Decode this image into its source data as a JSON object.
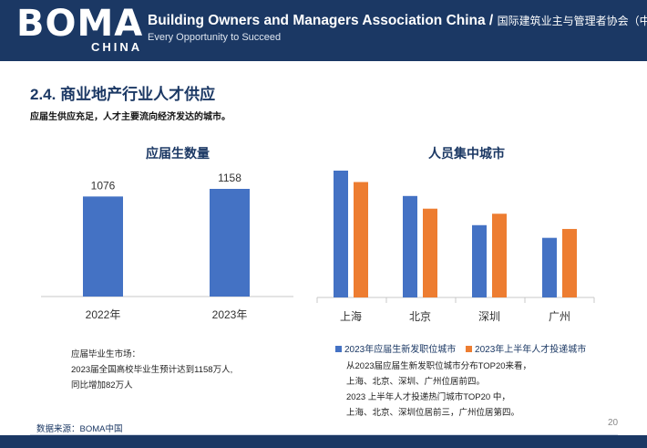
{
  "header": {
    "logo": "BOMA",
    "logo_sub": "CHINA",
    "title_en": "Building Owners and Managers Association China /",
    "title_cn": "国际建筑业主与管理者协会（中国）",
    "tagline": "Every Opportunity to Succeed"
  },
  "section": {
    "title": "2.4. 商业地产行业人才供应",
    "subtitle": "应届生供应充足，人才主要流向经济发达的城市。"
  },
  "chart_data": [
    {
      "type": "bar",
      "title": "应届生数量",
      "categories": [
        "2022年",
        "2023年"
      ],
      "values": [
        1076,
        1158
      ],
      "data_labels": [
        "1076",
        "1158"
      ],
      "colors": {
        "bar": "#4472c4"
      },
      "grid": false
    },
    {
      "type": "bar",
      "title": "人员集中城市",
      "categories": [
        "上海",
        "北京",
        "深圳",
        "广州"
      ],
      "series": [
        {
          "name": "2023年应届生新发职位城市",
          "values": [
            100,
            80,
            57,
            47
          ],
          "color": "#4472c4"
        },
        {
          "name": "2023年上半年人才投递城市",
          "values": [
            91,
            70,
            66,
            54
          ],
          "color": "#ed7d31"
        }
      ],
      "legend": "bottom",
      "grid": false
    }
  ],
  "notes_left": [
    "应届毕业生市场：",
    "2023届全国高校毕业生预计达到1158万人,",
    "同比增加82万人"
  ],
  "notes_right": [
    "从2023届应届生新发职位城市分布TOP20来看，",
    "上海、北京、深圳、广州位居前四。",
    "2023 上半年人才投递热门城市TOP20 中，",
    "上海、北京、深圳位居前三，广州位居第四。"
  ],
  "footer": {
    "source": "数据来源：BOMA中国",
    "page": "20"
  }
}
